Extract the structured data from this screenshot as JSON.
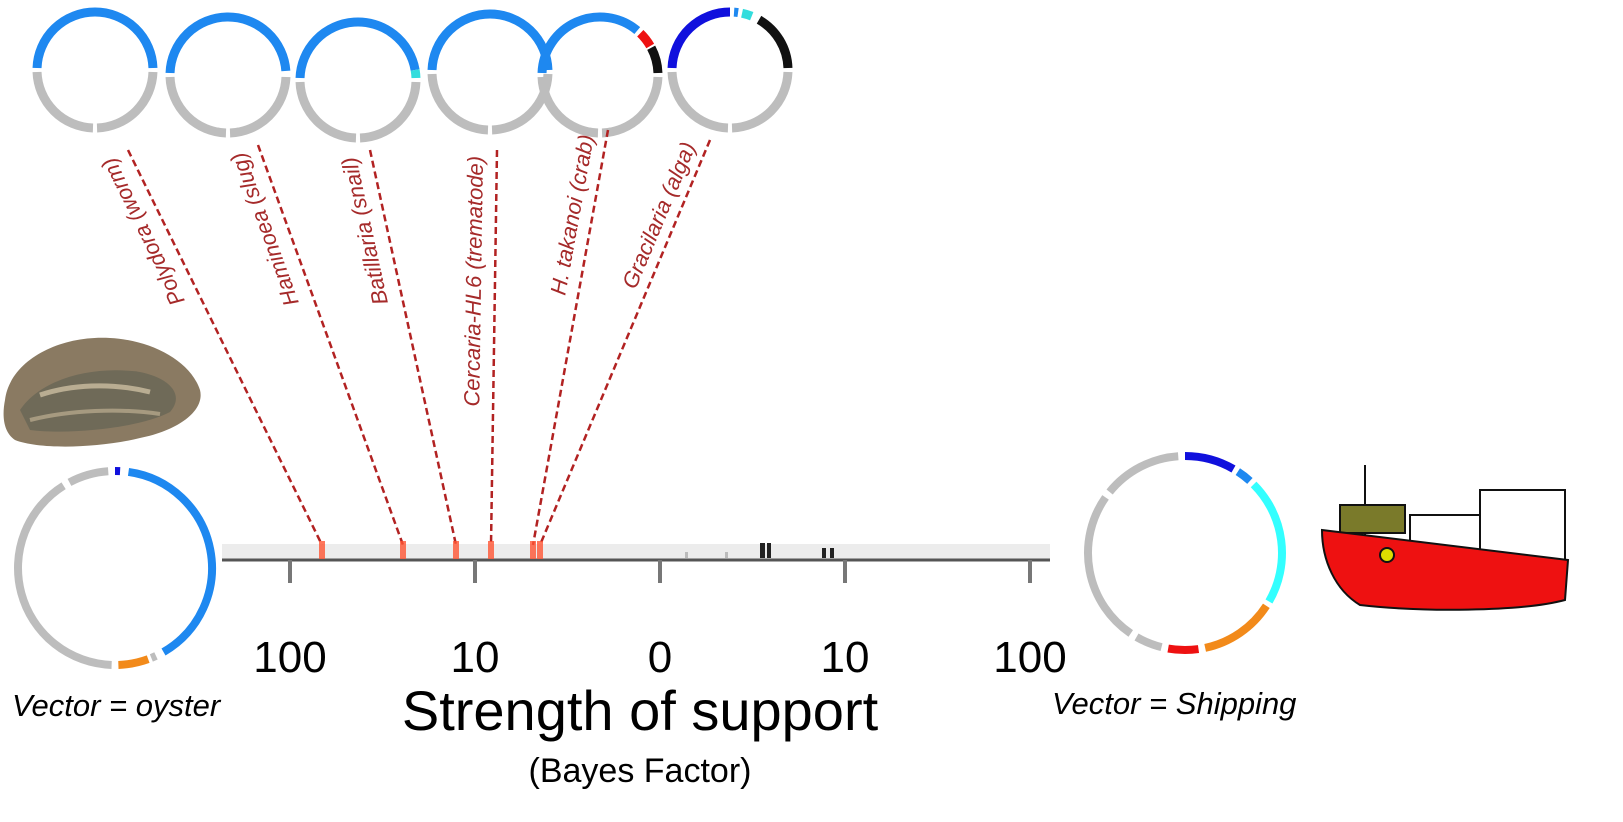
{
  "species": [
    {
      "label": "Polydora (worm)"
    },
    {
      "label": "Haminoea (slug)"
    },
    {
      "label": "Batillaria (snail)"
    },
    {
      "label": "Cercaria-HL6 (trematode)"
    },
    {
      "label": "H. takanoi (crab)"
    },
    {
      "label": "Gracilaria (alga)"
    }
  ],
  "axis": {
    "title": "Strength of support",
    "subtitle": "(Bayes Factor)",
    "tick_labels": [
      "100",
      "10",
      "0",
      "10",
      "100"
    ]
  },
  "left_vector": {
    "label": "Vector = oyster"
  },
  "right_vector": {
    "label": "Vector = Shipping"
  }
}
